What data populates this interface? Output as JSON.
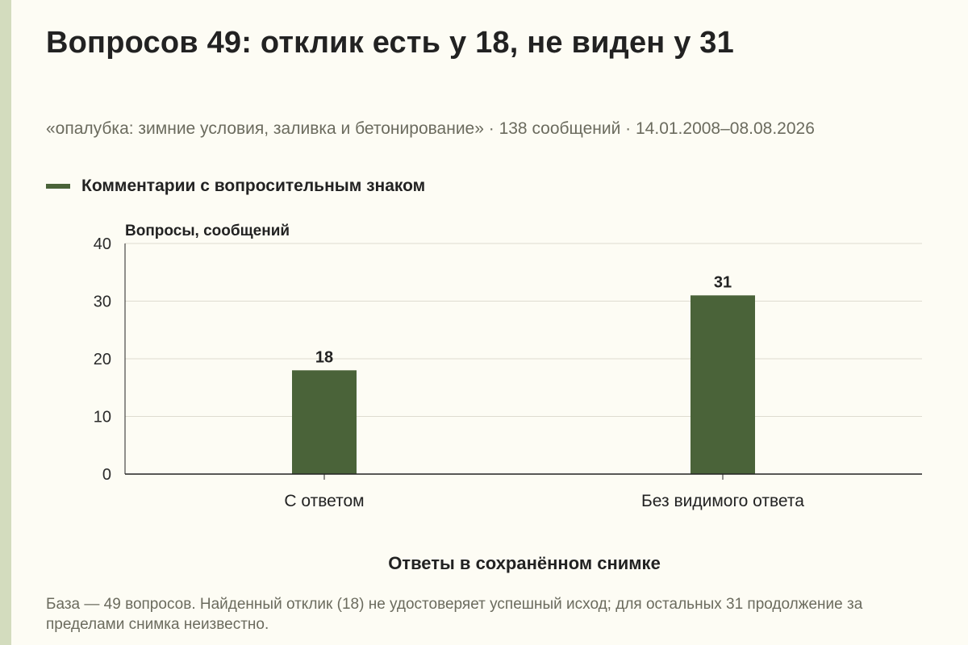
{
  "title": "Вопросов 49: отклик есть у 18, не виден у 31",
  "subtitle": "«опалубка: зимние условия, заливка и бетонирование» · 138 сообщений · 14.01.2008–08.08.2026",
  "footnote": "База — 49 вопросов. Найденный отклик (18) не удостоверяет успешный исход; для остальных 31 продолжение за пределами снимка неизвестно.",
  "colors": {
    "bar": "#4a6339",
    "grid": "#dedbd0",
    "axis": "#222222",
    "background": "#fdfcf4"
  },
  "chart_data": {
    "type": "bar",
    "categories": [
      "С ответом",
      "Без видимого ответа"
    ],
    "series": [
      {
        "name": "Комментарии с вопросительным знаком",
        "values": [
          18,
          31
        ]
      }
    ],
    "title": "Вопросов 49: отклик есть у 18, не виден у 31",
    "xlabel": "Ответы в сохранённом снимке",
    "ylabel": "Вопросы, сообщений",
    "ylim": [
      0,
      40
    ],
    "yticks": [
      0,
      10,
      20,
      30,
      40
    ],
    "grid": true,
    "legend": "top-left",
    "data_labels": true
  }
}
